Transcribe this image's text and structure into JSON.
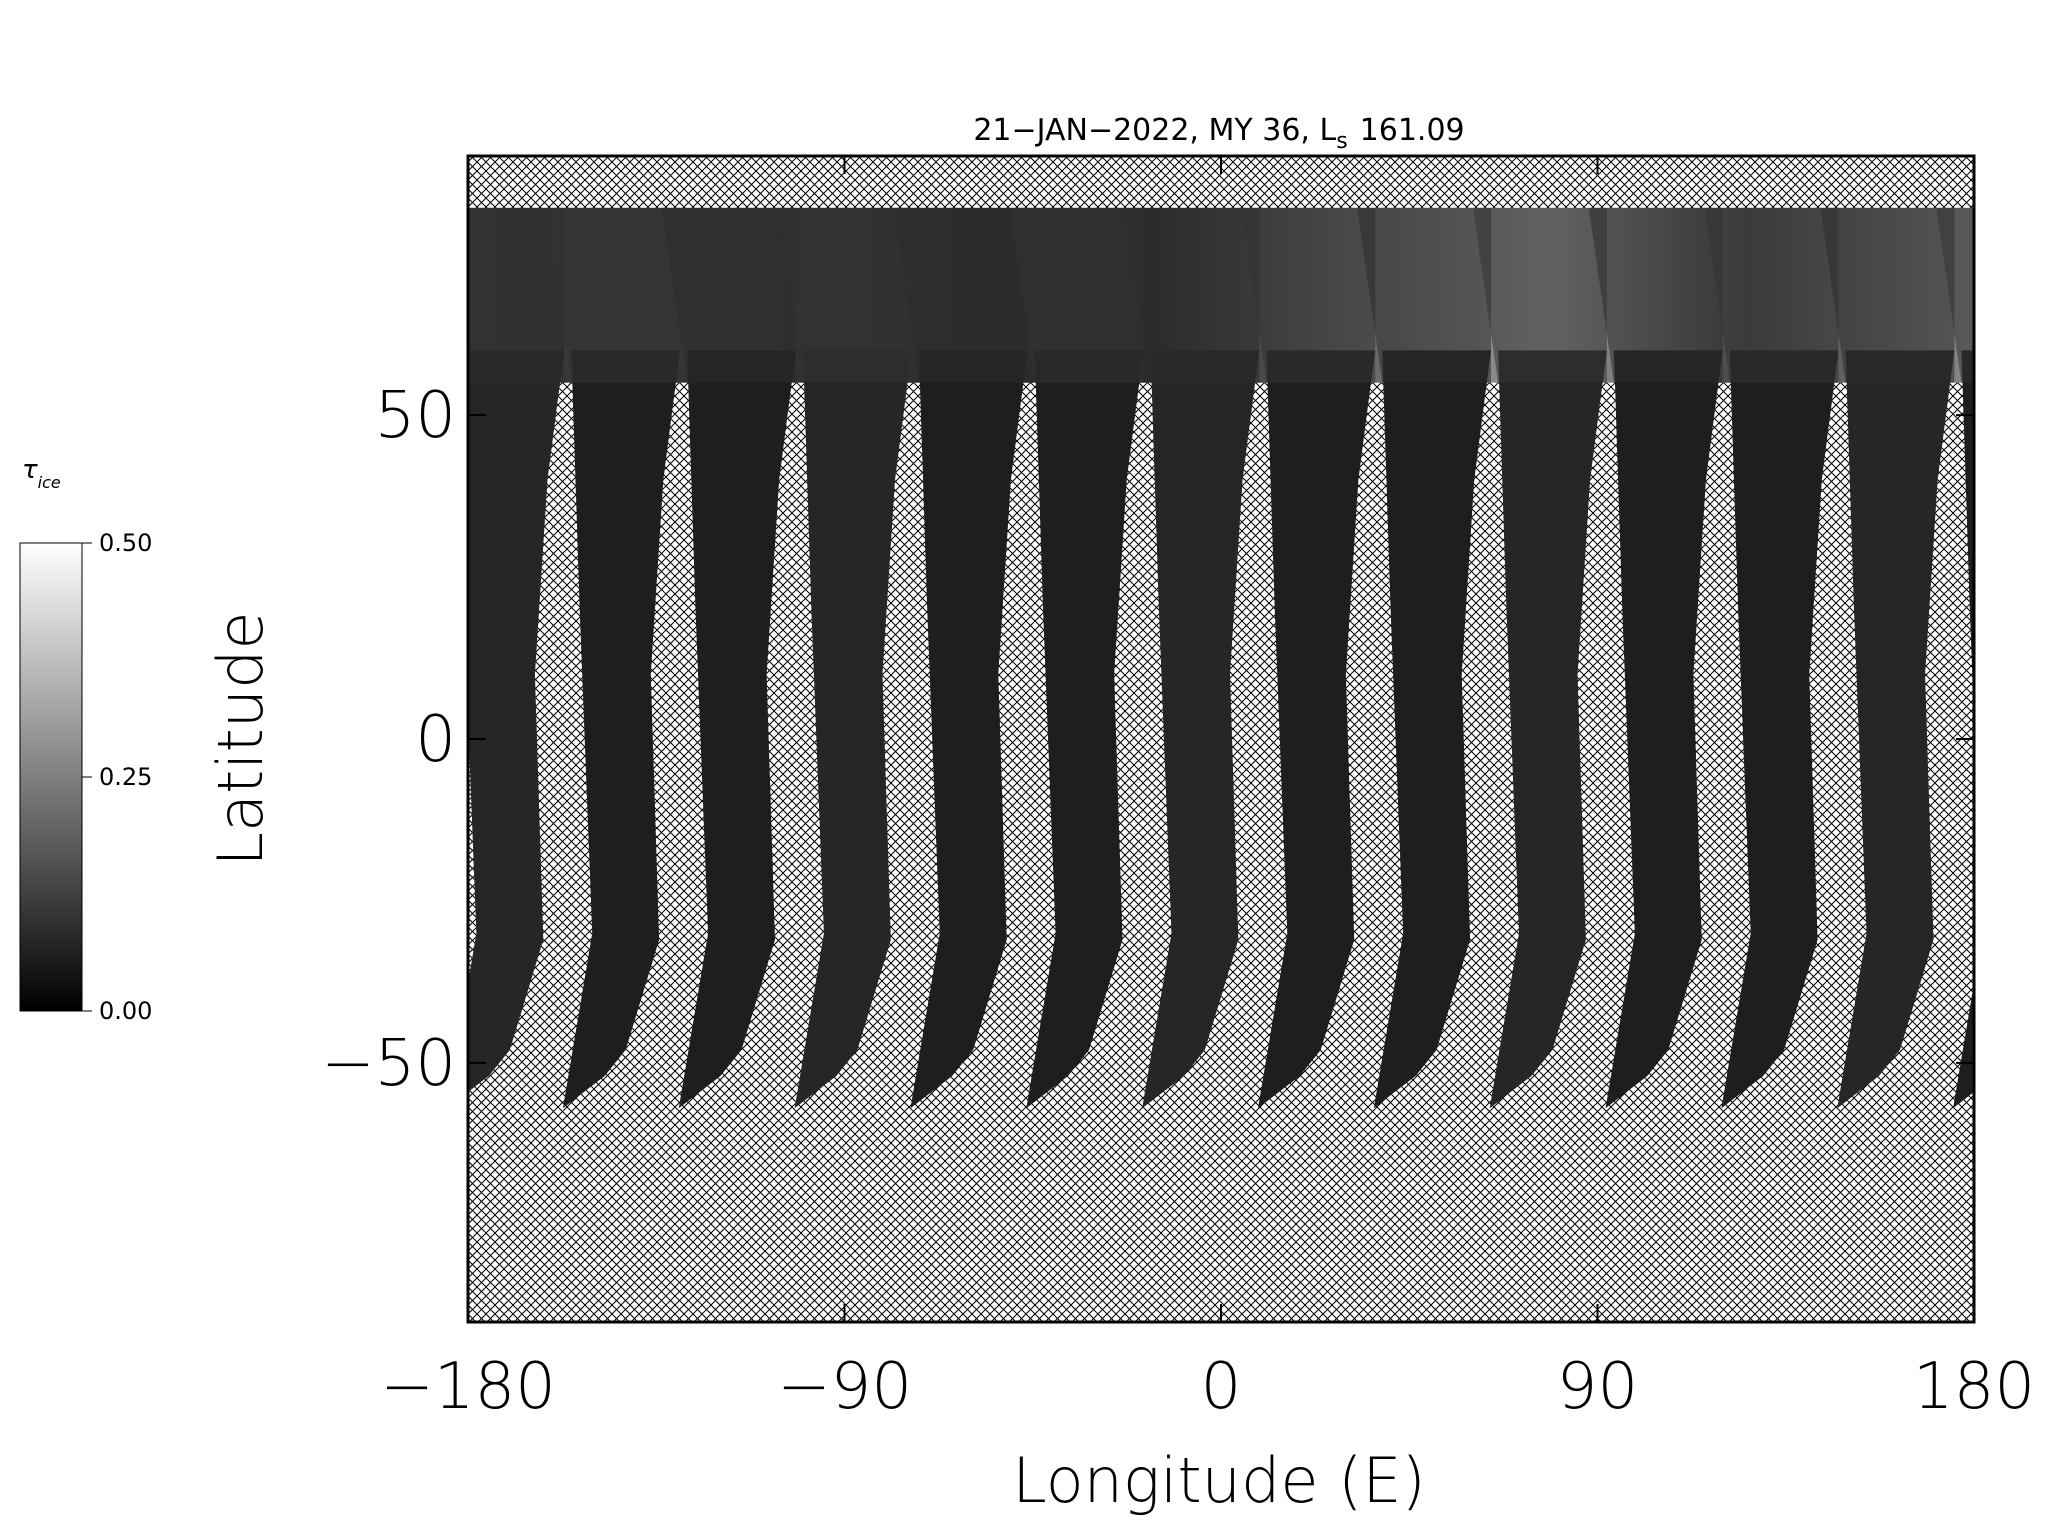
{
  "chart_data": {
    "type": "map",
    "title": "21−JAN−2022, MY 36,  L",
    "title_sub": "s",
    "title_end": "161.09",
    "xlabel": "Longitude (E)",
    "ylabel": "Latitude",
    "xlim": [
      -180,
      180
    ],
    "ylim": [
      -90,
      90
    ],
    "xticks": [
      {
        "value": -180,
        "label": "−180"
      },
      {
        "value": -90,
        "label": "−90"
      },
      0,
      90,
      180
    ],
    "yticks": [
      {
        "value": -50,
        "label": "−50"
      },
      0,
      50
    ],
    "colorbar": {
      "label": "τ",
      "label_sub": "ice",
      "lim": [
        0,
        0.5
      ],
      "ticks": [
        {
          "value": 0,
          "label": "0.00"
        },
        {
          "value": 0.25,
          "label": "0.25"
        },
        {
          "value": 0.5,
          "label": "0.50"
        }
      ]
    }
  }
}
